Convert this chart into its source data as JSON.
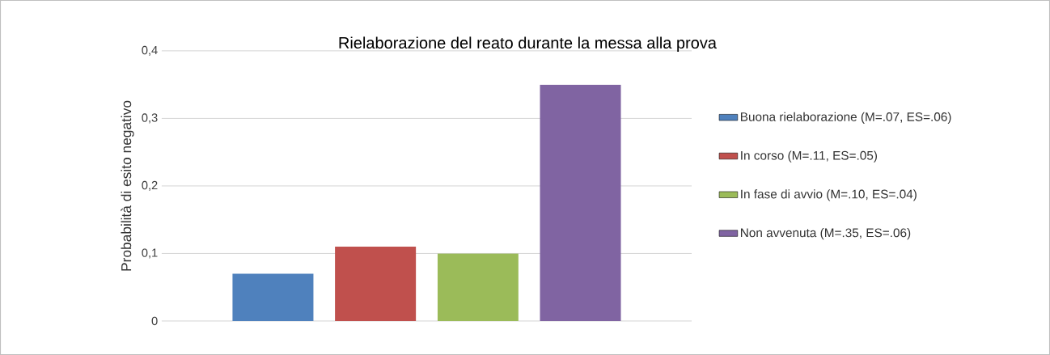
{
  "chart_data": {
    "type": "bar",
    "title": "Rielaborazione del reato durante la messa alla prova",
    "ylabel": "Probabilità di esito negativo",
    "categories": [
      null
    ],
    "series": [
      {
        "name": "Buona rielaborazione (M=.07, ES=.06)",
        "color": "#4f81bd",
        "values": [
          0.07
        ]
      },
      {
        "name": "In corso (M=.11, ES=.05)",
        "color": "#c0504d",
        "values": [
          0.11
        ]
      },
      {
        "name": "In fase di avvio (M=.10, ES=.04)",
        "color": "#9bbb59",
        "values": [
          0.1
        ]
      },
      {
        "name": "Non avvenuta (M=.35, ES=.06)",
        "color": "#8064a2",
        "values": [
          0.35
        ]
      }
    ],
    "ylim": [
      0,
      0.4
    ],
    "yticks": [
      {
        "value": 0,
        "label": "0"
      },
      {
        "value": 0.1,
        "label": "0,1"
      },
      {
        "value": 0.2,
        "label": "0,2"
      },
      {
        "value": 0.3,
        "label": "0,3"
      },
      {
        "value": 0.4,
        "label": "0,4"
      }
    ],
    "grid": "y",
    "legend": "right"
  }
}
